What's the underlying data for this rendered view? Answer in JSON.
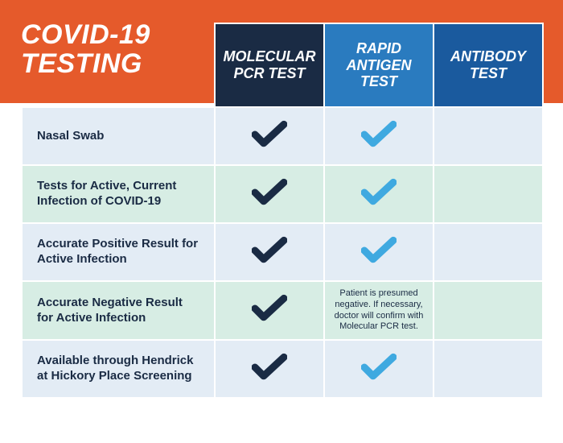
{
  "title_line1": "COVID-19",
  "title_line2": "TESTING",
  "header_bg": "#e55a2b",
  "columns": [
    {
      "label": "MOLECULAR\nPCR TEST",
      "bg": "#1a2b44"
    },
    {
      "label": "RAPID\nANTIGEN\nTEST",
      "bg": "#2a7bbf"
    },
    {
      "label": "ANTIBODY\nTEST",
      "bg": "#1a5a9e"
    }
  ],
  "row_alt_colors": [
    "#e3ecf5",
    "#d7ede4"
  ],
  "check_colors": {
    "dark": "#1a2b44",
    "light": "#3fa9e0"
  },
  "rows": [
    {
      "label": "Nasal Swab",
      "cells": [
        {
          "type": "check",
          "color": "dark"
        },
        {
          "type": "check",
          "color": "light"
        },
        {
          "type": "empty"
        }
      ]
    },
    {
      "label": "Tests for Active, Current Infection of COVID-19",
      "cells": [
        {
          "type": "check",
          "color": "dark"
        },
        {
          "type": "check",
          "color": "light"
        },
        {
          "type": "empty"
        }
      ]
    },
    {
      "label": "Accurate Positive Result for Active Infection",
      "cells": [
        {
          "type": "check",
          "color": "dark"
        },
        {
          "type": "check",
          "color": "light"
        },
        {
          "type": "empty"
        }
      ]
    },
    {
      "label": "Accurate Negative Result for Active Infection",
      "cells": [
        {
          "type": "check",
          "color": "dark"
        },
        {
          "type": "text",
          "text": "Patient is presumed negative. If necessary, doctor will confirm with Molecular PCR test."
        },
        {
          "type": "empty"
        }
      ]
    },
    {
      "label": "Available through Hendrick at Hickory Place Screening",
      "cells": [
        {
          "type": "check",
          "color": "dark"
        },
        {
          "type": "check",
          "color": "light"
        },
        {
          "type": "empty"
        }
      ]
    }
  ]
}
